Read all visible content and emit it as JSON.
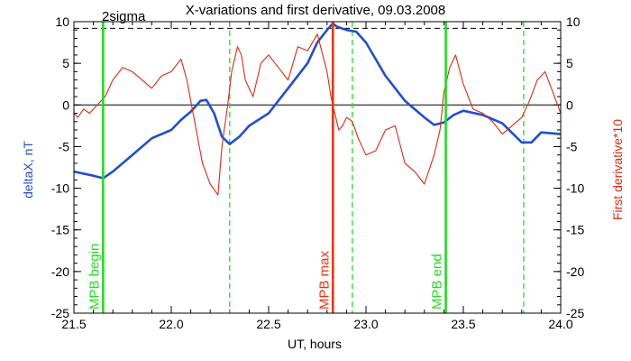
{
  "chart_data": {
    "type": "line",
    "title": "X-variations and first derivative, 09.03.2008",
    "xlabel": "UT, hours",
    "ylabel": "deltaX, nT",
    "ylabel_right": "First derivative*10",
    "xlim": [
      21.5,
      24.0
    ],
    "ylim": [
      -25,
      10
    ],
    "ylim_right": [
      -25,
      10
    ],
    "x_ticks": [
      "21.5",
      "22.0",
      "22.5",
      "23.0",
      "23.5",
      "24.0"
    ],
    "y_ticks": [
      "10",
      "5",
      "0",
      "-5",
      "-10",
      "-15",
      "-20",
      "-25"
    ],
    "y_ticks_right": [
      "10",
      "5",
      "0",
      "-5",
      "-10",
      "-15",
      "-20",
      "-25"
    ],
    "zero_line": 0,
    "threshold": {
      "label": "2sigma",
      "value": 9.2
    },
    "colors": {
      "deltaX": "#1f4fd1",
      "derivative": "#dd2a10",
      "markers": "#22dd22",
      "max_marker": "#ee3311"
    },
    "markers": [
      {
        "x": 21.65,
        "label": "MPB begin",
        "kind": "solid",
        "color": "#22dd22"
      },
      {
        "x": 22.83,
        "label": "MPB max",
        "kind": "solid",
        "color": "#ee3311"
      },
      {
        "x": 23.41,
        "label": "MPB end",
        "kind": "solid",
        "color": "#22dd22"
      },
      {
        "x": 22.3,
        "label": "",
        "kind": "dashed",
        "color": "#22dd22"
      },
      {
        "x": 22.93,
        "label": "",
        "kind": "dashed",
        "color": "#22dd22"
      },
      {
        "x": 23.81,
        "label": "",
        "kind": "dashed",
        "color": "#22dd22"
      }
    ],
    "series": [
      {
        "name": "deltaX, nT",
        "axis": "left",
        "x": [
          21.5,
          21.6,
          21.65,
          21.7,
          21.8,
          21.9,
          22.0,
          22.05,
          22.1,
          22.15,
          22.18,
          22.22,
          22.26,
          22.3,
          22.35,
          22.4,
          22.5,
          22.6,
          22.7,
          22.75,
          22.8,
          22.83,
          22.85,
          22.9,
          22.95,
          23.0,
          23.1,
          23.2,
          23.3,
          23.35,
          23.4,
          23.45,
          23.5,
          23.6,
          23.7,
          23.8,
          23.85,
          23.9,
          24.0
        ],
        "y": [
          -8.0,
          -8.5,
          -8.8,
          -8.0,
          -6.0,
          -4.0,
          -3.0,
          -1.8,
          -0.8,
          0.5,
          0.6,
          -1.0,
          -3.8,
          -4.7,
          -3.8,
          -2.5,
          -1.0,
          2.0,
          5.0,
          7.5,
          9.0,
          9.8,
          9.4,
          9.0,
          8.8,
          7.5,
          3.5,
          0.5,
          -1.5,
          -2.4,
          -2.1,
          -1.2,
          -0.7,
          -1.2,
          -2.2,
          -4.5,
          -4.5,
          -3.3,
          -3.5
        ]
      },
      {
        "name": "First derivative*10",
        "axis": "right",
        "x": [
          21.5,
          21.52,
          21.55,
          21.58,
          21.62,
          21.66,
          21.7,
          21.75,
          21.8,
          21.85,
          21.9,
          21.95,
          22.0,
          22.05,
          22.08,
          22.12,
          22.16,
          22.2,
          22.24,
          22.26,
          22.29,
          22.31,
          22.34,
          22.36,
          22.38,
          22.42,
          22.46,
          22.5,
          22.55,
          22.6,
          22.65,
          22.7,
          22.75,
          22.8,
          22.82,
          22.84,
          22.86,
          22.88,
          22.9,
          22.93,
          22.96,
          23.0,
          23.05,
          23.1,
          23.15,
          23.2,
          23.25,
          23.3,
          23.35,
          23.38,
          23.4,
          23.43,
          23.46,
          23.5,
          23.55,
          23.6,
          23.65,
          23.7,
          23.75,
          23.8,
          23.84,
          23.88,
          23.92,
          23.96,
          24.0
        ],
        "y": [
          -1.0,
          -1.5,
          -0.5,
          -1.0,
          0.0,
          1.0,
          3.0,
          4.5,
          4.0,
          3.0,
          2.0,
          3.5,
          4.0,
          5.5,
          3.0,
          -2.0,
          -7.0,
          -9.5,
          -10.8,
          -5.0,
          0.0,
          4.0,
          7.0,
          6.0,
          3.0,
          1.0,
          5.0,
          6.0,
          4.5,
          3.0,
          7.0,
          6.5,
          8.5,
          4.0,
          1.0,
          -1.0,
          -3.0,
          -2.5,
          -1.5,
          -2.0,
          -4.0,
          -6.0,
          -5.5,
          -3.0,
          -2.5,
          -7.0,
          -8.0,
          -9.5,
          -6.0,
          -3.0,
          1.5,
          4.5,
          6.0,
          2.5,
          -0.5,
          -1.0,
          -2.0,
          -3.5,
          -2.5,
          -1.5,
          0.5,
          3.0,
          4.0,
          1.5,
          -1.0
        ]
      }
    ]
  }
}
